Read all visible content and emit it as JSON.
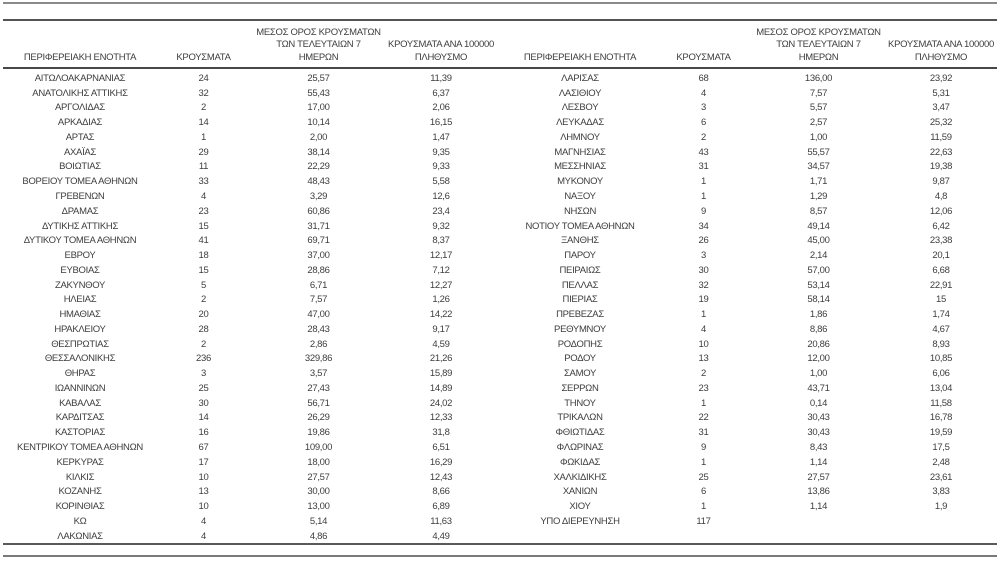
{
  "table": {
    "headers": {
      "region": "ΠΕΡΙΦΕΡΕΙΑΚΗ ΕΝΟΤΗΤΑ",
      "cases": "ΚΡΟΥΣΜΑΤΑ",
      "avg7": "ΜΕΣΟΣ ΟΡΟΣ ΚΡΟΥΣΜΑΤΩΝ\nΤΩΝ ΤΕΛΕΥΤΑΙΩΝ 7\nΗΜΕΡΩΝ",
      "per100k": "ΚΡΟΥΣΜΑΤΑ ΑΝΑ 100000\nΠΛΗΘΥΣΜΟ"
    },
    "left_rows": [
      [
        "ΑΙΤΩΛΟΑΚΑΡΝΑΝΙΑΣ",
        "24",
        "25,57",
        "11,39"
      ],
      [
        "ΑΝΑΤΟΛΙΚΗΣ ΑΤΤΙΚΗΣ",
        "32",
        "55,43",
        "6,37"
      ],
      [
        "ΑΡΓΟΛΙΔΑΣ",
        "2",
        "17,00",
        "2,06"
      ],
      [
        "ΑΡΚΑΔΙΑΣ",
        "14",
        "10,14",
        "16,15"
      ],
      [
        "ΑΡΤΑΣ",
        "1",
        "2,00",
        "1,47"
      ],
      [
        "ΑΧΑΪΑΣ",
        "29",
        "38,14",
        "9,35"
      ],
      [
        "ΒΟΙΩΤΙΑΣ",
        "11",
        "22,29",
        "9,33"
      ],
      [
        "ΒΟΡΕΙΟΥ ΤΟΜΕΑ ΑΘΗΝΩΝ",
        "33",
        "48,43",
        "5,58"
      ],
      [
        "ΓΡΕΒΕΝΩΝ",
        "4",
        "3,29",
        "12,6"
      ],
      [
        "ΔΡΑΜΑΣ",
        "23",
        "60,86",
        "23,4"
      ],
      [
        "ΔΥΤΙΚΗΣ ΑΤΤΙΚΗΣ",
        "15",
        "31,71",
        "9,32"
      ],
      [
        "ΔΥΤΙΚΟΥ ΤΟΜΕΑ ΑΘΗΝΩΝ",
        "41",
        "69,71",
        "8,37"
      ],
      [
        "ΕΒΡΟΥ",
        "18",
        "37,00",
        "12,17"
      ],
      [
        "ΕΥΒΟΙΑΣ",
        "15",
        "28,86",
        "7,12"
      ],
      [
        "ΖΑΚΥΝΘΟΥ",
        "5",
        "6,71",
        "12,27"
      ],
      [
        "ΗΛΕΙΑΣ",
        "2",
        "7,57",
        "1,26"
      ],
      [
        "ΗΜΑΘΙΑΣ",
        "20",
        "47,00",
        "14,22"
      ],
      [
        "ΗΡΑΚΛΕΙΟΥ",
        "28",
        "28,43",
        "9,17"
      ],
      [
        "ΘΕΣΠΡΩΤΙΑΣ",
        "2",
        "2,86",
        "4,59"
      ],
      [
        "ΘΕΣΣΑΛΟΝΙΚΗΣ",
        "236",
        "329,86",
        "21,26"
      ],
      [
        "ΘΗΡΑΣ",
        "3",
        "3,57",
        "15,89"
      ],
      [
        "ΙΩΑΝΝΙΝΩΝ",
        "25",
        "27,43",
        "14,89"
      ],
      [
        "ΚΑΒΑΛΑΣ",
        "30",
        "56,71",
        "24,02"
      ],
      [
        "ΚΑΡΔΙΤΣΑΣ",
        "14",
        "26,29",
        "12,33"
      ],
      [
        "ΚΑΣΤΟΡΙΑΣ",
        "16",
        "19,86",
        "31,8"
      ],
      [
        "ΚΕΝΤΡΙΚΟΥ ΤΟΜΕΑ ΑΘΗΝΩΝ",
        "67",
        "109,00",
        "6,51"
      ],
      [
        "ΚΕΡΚΥΡΑΣ",
        "17",
        "18,00",
        "16,29"
      ],
      [
        "ΚΙΛΚΙΣ",
        "10",
        "27,57",
        "12,43"
      ],
      [
        "ΚΟΖΑΝΗΣ",
        "13",
        "30,00",
        "8,66"
      ],
      [
        "ΚΟΡΙΝΘΙΑΣ",
        "10",
        "13,00",
        "6,89"
      ],
      [
        "ΚΩ",
        "4",
        "5,14",
        "11,63"
      ],
      [
        "ΛΑΚΩΝΙΑΣ",
        "4",
        "4,86",
        "4,49"
      ]
    ],
    "right_rows": [
      [
        "ΛΑΡΙΣΑΣ",
        "68",
        "136,00",
        "23,92"
      ],
      [
        "ΛΑΣΙΘΙΟΥ",
        "4",
        "7,57",
        "5,31"
      ],
      [
        "ΛΕΣΒΟΥ",
        "3",
        "5,57",
        "3,47"
      ],
      [
        "ΛΕΥΚΑΔΑΣ",
        "6",
        "2,57",
        "25,32"
      ],
      [
        "ΛΗΜΝΟΥ",
        "2",
        "1,00",
        "11,59"
      ],
      [
        "ΜΑΓΝΗΣΙΑΣ",
        "43",
        "55,57",
        "22,63"
      ],
      [
        "ΜΕΣΣΗΝΙΑΣ",
        "31",
        "34,57",
        "19,38"
      ],
      [
        "ΜΥΚΟΝΟΥ",
        "1",
        "1,71",
        "9,87"
      ],
      [
        "ΝΑΞΟΥ",
        "1",
        "1,29",
        "4,8"
      ],
      [
        "ΝΗΣΩΝ",
        "9",
        "8,57",
        "12,06"
      ],
      [
        "ΝΟΤΙΟΥ ΤΟΜΕΑ ΑΘΗΝΩΝ",
        "34",
        "49,14",
        "6,42"
      ],
      [
        "ΞΑΝΘΗΣ",
        "26",
        "45,00",
        "23,38"
      ],
      [
        "ΠΑΡΟΥ",
        "3",
        "2,14",
        "20,1"
      ],
      [
        "ΠΕΙΡΑΙΩΣ",
        "30",
        "57,00",
        "6,68"
      ],
      [
        "ΠΕΛΛΑΣ",
        "32",
        "53,14",
        "22,91"
      ],
      [
        "ΠΙΕΡΙΑΣ",
        "19",
        "58,14",
        "15"
      ],
      [
        "ΠΡΕΒΕΖΑΣ",
        "1",
        "1,86",
        "1,74"
      ],
      [
        "ΡΕΘΥΜΝΟΥ",
        "4",
        "8,86",
        "4,67"
      ],
      [
        "ΡΟΔΟΠΗΣ",
        "10",
        "20,86",
        "8,93"
      ],
      [
        "ΡΟΔΟΥ",
        "13",
        "12,00",
        "10,85"
      ],
      [
        "ΣΑΜΟΥ",
        "2",
        "1,00",
        "6,06"
      ],
      [
        "ΣΕΡΡΩΝ",
        "23",
        "43,71",
        "13,04"
      ],
      [
        "ΤΗΝΟΥ",
        "1",
        "0,14",
        "11,58"
      ],
      [
        "ΤΡΙΚΑΛΩΝ",
        "22",
        "30,43",
        "16,78"
      ],
      [
        "ΦΘΙΩΤΙΔΑΣ",
        "31",
        "30,43",
        "19,59"
      ],
      [
        "ΦΛΩΡΙΝΑΣ",
        "9",
        "8,43",
        "17,5"
      ],
      [
        "ΦΩΚΙΔΑΣ",
        "1",
        "1,14",
        "2,48"
      ],
      [
        "ΧΑΛΚΙΔΙΚΗΣ",
        "25",
        "27,57",
        "23,61"
      ],
      [
        "ΧΑΝΙΩΝ",
        "6",
        "13,86",
        "3,83"
      ],
      [
        "ΧΙΟΥ",
        "1",
        "1,14",
        "1,9"
      ],
      [
        "ΥΠΟ ΔΙΕΡΕΥΝΗΣΗ",
        "117",
        "",
        ""
      ]
    ]
  },
  "colors": {
    "text": "#3d3d3d",
    "rule_dark": "#474747",
    "rule_gray": "#8a8a8a"
  }
}
